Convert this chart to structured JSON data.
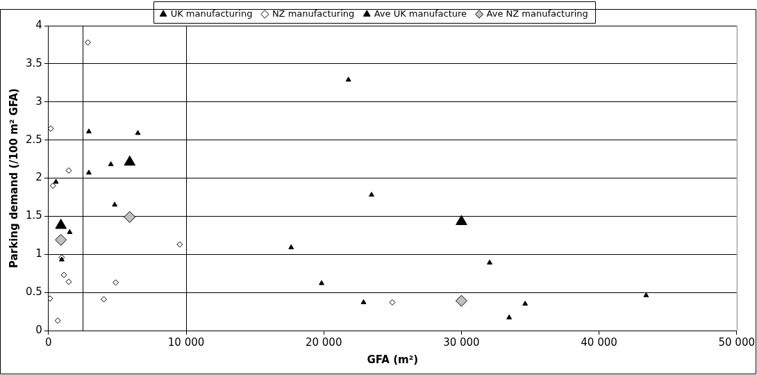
{
  "chart_data": {
    "type": "scatter",
    "xlabel": "GFA (m²)",
    "ylabel": "Parking demand (/100 m² GFA)",
    "xlim": [
      0,
      50000
    ],
    "xticks": [
      0,
      {
        "value": 10000,
        "label": "10 000"
      },
      {
        "value": 20000,
        "label": "20 000"
      },
      {
        "value": 30000,
        "label": "30 000"
      },
      {
        "value": 40000,
        "label": "40 000"
      },
      {
        "value": 50000,
        "label": "50 000"
      }
    ],
    "ylim": [
      0,
      4
    ],
    "yticks": [
      0,
      0.5,
      1,
      1.5,
      2,
      2.5,
      3,
      3.5,
      4
    ],
    "grid": "y",
    "legend": "top",
    "ref_lines": [
      {
        "axis": "x",
        "value": 2500,
        "color": "#000000"
      },
      {
        "axis": "x",
        "value": 10000,
        "color": "#000000"
      }
    ],
    "series": [
      {
        "name": "UK manufacturing",
        "color": "#000000",
        "marker": "triangle",
        "x": [
          21790,
          23470,
          17630,
          32050,
          19840,
          22890,
          34630,
          33470,
          43420,
          2930,
          6490,
          4530,
          2930,
          540,
          4810,
          1540,
          960
        ],
        "values": [
          3.29,
          1.78,
          1.09,
          0.89,
          0.62,
          0.37,
          0.35,
          0.17,
          0.46,
          2.61,
          2.59,
          2.18,
          2.07,
          1.95,
          1.65,
          1.29,
          0.93
        ]
      },
      {
        "name": "NZ manufacturing",
        "color": "#ffffff",
        "marker": "diamond",
        "x": [
          2860,
          160,
          1470,
          320,
          9530,
          960,
          1120,
          1470,
          4880,
          110,
          4020,
          670,
          24980
        ],
        "values": [
          3.78,
          2.65,
          2.1,
          1.9,
          1.13,
          0.96,
          0.73,
          0.64,
          0.63,
          0.42,
          0.41,
          0.13,
          0.37
        ]
      },
      {
        "name": "Ave UK manufacture",
        "color": "#000000",
        "marker": "triangle",
        "x": [
          900,
          5900,
          30000
        ],
        "values": [
          1.38,
          2.21,
          1.43
        ]
      },
      {
        "name": "Ave NZ manufacturing",
        "color": "#c0c0c0",
        "marker": "diamond",
        "x": [
          900,
          5900,
          30000
        ],
        "values": [
          1.19,
          1.49,
          0.39
        ]
      }
    ]
  }
}
